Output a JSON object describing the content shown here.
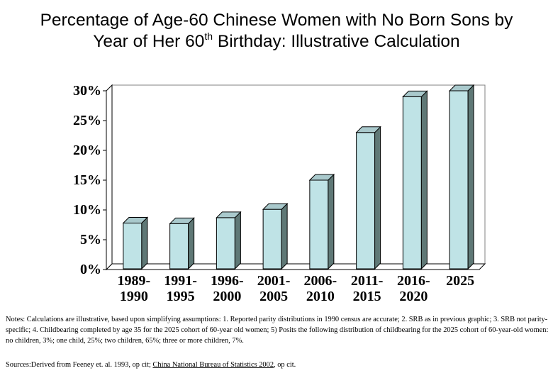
{
  "title": {
    "line1": "Percentage of Age-60 Chinese Women with No Born Sons by",
    "line2_before": "Year of Her 60",
    "line2_sup": "th",
    "line2_after": " Birthday: Illustrative Calculation"
  },
  "chart_data": {
    "type": "bar",
    "categories": [
      [
        "1989-",
        "1990"
      ],
      [
        "1991-",
        "1995"
      ],
      [
        "1996-",
        "2000"
      ],
      [
        "2001-",
        "2005"
      ],
      [
        "2006-",
        "2010"
      ],
      [
        "2011-",
        "2015"
      ],
      [
        "2016-",
        "2020"
      ],
      [
        "2025"
      ]
    ],
    "values": [
      7.8,
      7.7,
      8.7,
      10.1,
      15.0,
      23.0,
      29.0,
      30.0
    ],
    "ylim": [
      0,
      30
    ],
    "yticks": [
      "0%",
      "5%",
      "10%",
      "15%",
      "20%",
      "25%",
      "30%"
    ],
    "grid": false,
    "style": "3d",
    "colors": {
      "bar_front": "#bfe3e6",
      "bar_side": "#5f7876",
      "bar_top": "#a9c9cc",
      "plot_border": "#808080"
    }
  },
  "notes": "Notes: Calculations are illustrative, based upon simplifying assumptions: 1.  Reported parity distributions in 1990 census are accurate; 2.  SRB as in previous graphic; 3.  SRB not parity-specific; 4.  Childbearing completed by age 35 for the 2025 cohort of 60-year old women; 5) Posits the following distribution of childbearing for the 2025 cohort of 60-year-old women: no children, 3%; one child, 25%; two children, 65%; three or more children, 7%.",
  "sources": {
    "prefix": "Sources:Derived from  Feeney et. al. 1993, op cit; ",
    "underlined": "China National Bureau of Statistics 2002",
    "suffix": ", op cit."
  }
}
